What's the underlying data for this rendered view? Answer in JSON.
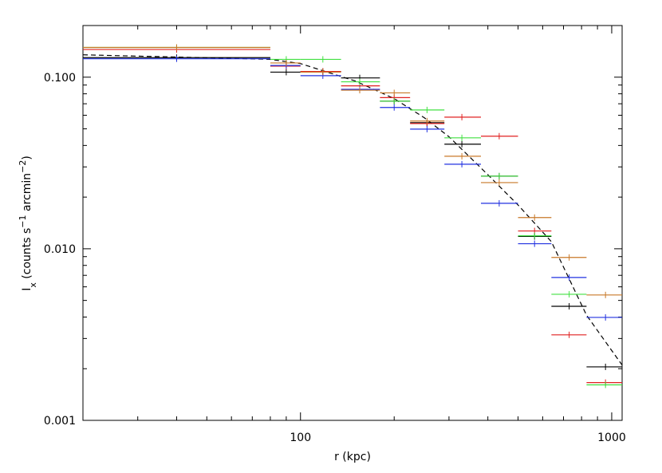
{
  "chart_data": {
    "type": "scatter",
    "xlabel": "r (kpc)",
    "ylabel_parts": [
      {
        "text": "I"
      },
      {
        "text": "x",
        "shift": "sub"
      },
      {
        "text": " (counts s"
      },
      {
        "text": "−1",
        "shift": "sup"
      },
      {
        "text": " arcmin"
      },
      {
        "text": "−2",
        "shift": "sup"
      },
      {
        "text": ")"
      }
    ],
    "xlog": true,
    "ylog": true,
    "xlim": [
      20,
      1080
    ],
    "ylim": [
      0.001,
      0.2
    ],
    "xticks": [
      100,
      1000
    ],
    "yticks": [
      0.001,
      {
        "value": 0.01,
        "label": "0.010"
      },
      {
        "value": 0.1,
        "label": "0.100"
      }
    ],
    "xminorticks": [
      20,
      30,
      40,
      50,
      60,
      70,
      80,
      90,
      200,
      300,
      400,
      500,
      600,
      700,
      800,
      900
    ],
    "yminorticks": [
      0.002,
      0.003,
      0.004,
      0.005,
      0.006,
      0.007,
      0.008,
      0.009,
      0.02,
      0.03,
      0.04,
      0.05,
      0.06,
      0.07,
      0.08,
      0.09,
      0.2
    ],
    "series": [
      {
        "color": "#000000",
        "x": [
          40,
          90,
          118,
          155,
          200,
          255,
          330,
          435,
          565,
          730,
          955
        ],
        "xlow": [
          20,
          80,
          100,
          135,
          180,
          225,
          290,
          380,
          500,
          640,
          830
        ],
        "xhigh": [
          80,
          100,
          135,
          180,
          225,
          290,
          380,
          500,
          640,
          830,
          1080
        ],
        "values": [
          0.13,
          0.107,
          0.108,
          0.099,
          0.0725,
          0.0543,
          0.0407,
          0.0265,
          0.0118,
          0.00462,
          0.00205
        ]
      },
      {
        "color": "#e02020",
        "x": [
          40,
          90,
          118,
          155,
          200,
          255,
          330,
          435,
          565,
          730,
          955
        ],
        "xlow": [
          20,
          80,
          100,
          135,
          180,
          225,
          290,
          380,
          500,
          640,
          830
        ],
        "xhigh": [
          80,
          100,
          135,
          180,
          225,
          290,
          380,
          500,
          640,
          830,
          1080
        ],
        "values": [
          0.145,
          0.116,
          0.108,
          0.089,
          0.076,
          0.0537,
          0.0585,
          0.0453,
          0.0127,
          0.00315,
          0.00166
        ]
      },
      {
        "color": "#40e040",
        "x": [
          40,
          90,
          118,
          155,
          200,
          255,
          330,
          435,
          565,
          730,
          955
        ],
        "xlow": [
          20,
          80,
          100,
          135,
          180,
          225,
          290,
          380,
          500,
          640,
          830
        ],
        "xhigh": [
          80,
          100,
          135,
          180,
          225,
          290,
          380,
          500,
          640,
          830,
          1080
        ],
        "values": [
          0.149,
          0.127,
          0.127,
          0.094,
          0.0725,
          0.0644,
          0.0443,
          0.0265,
          0.0119,
          0.00543,
          0.00161
        ]
      },
      {
        "color": "#2030e0",
        "x": [
          40,
          90,
          118,
          155,
          200,
          255,
          330,
          435,
          565,
          730,
          955
        ],
        "xlow": [
          20,
          80,
          100,
          135,
          180,
          225,
          290,
          380,
          500,
          640,
          830
        ],
        "xhigh": [
          80,
          100,
          135,
          180,
          225,
          290,
          380,
          500,
          640,
          830,
          1080
        ],
        "values": [
          0.128,
          0.117,
          0.102,
          0.085,
          0.0666,
          0.0498,
          0.0311,
          0.0184,
          0.0107,
          0.0068,
          0.00398
        ]
      },
      {
        "color": "#c87828",
        "x": [
          40,
          90,
          118,
          155,
          200,
          255,
          330,
          435,
          565,
          730,
          955
        ],
        "xlow": [
          20,
          80,
          100,
          135,
          180,
          225,
          290,
          380,
          500,
          640,
          830
        ],
        "xhigh": [
          80,
          100,
          135,
          180,
          225,
          290,
          380,
          500,
          640,
          830,
          1080
        ],
        "values": [
          0.149,
          0.121,
          0.107,
          0.084,
          0.081,
          0.0555,
          0.0346,
          0.0243,
          0.0152,
          0.0089,
          0.00538
        ]
      }
    ],
    "model": {
      "color": "#000000",
      "dashed": true,
      "x": [
        20,
        80,
        100,
        150,
        200,
        250,
        300,
        400,
        500,
        640,
        830,
        1080
      ],
      "values": [
        0.135,
        0.127,
        0.12,
        0.095,
        0.075,
        0.058,
        0.045,
        0.027,
        0.018,
        0.011,
        0.0041,
        0.0021
      ]
    }
  }
}
